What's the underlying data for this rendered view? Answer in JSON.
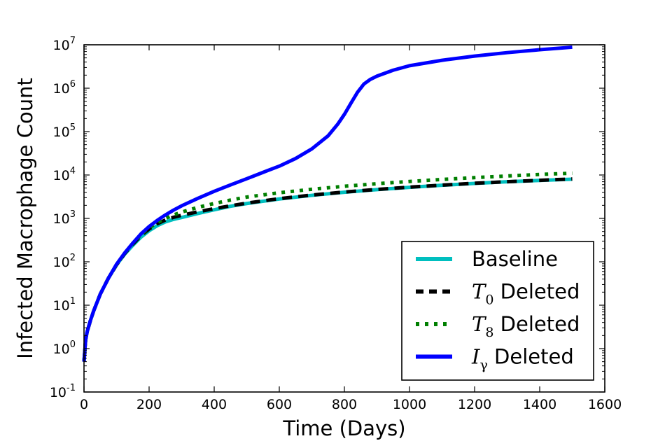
{
  "chart_data": {
    "type": "line",
    "xlabel": "Time (Days)",
    "ylabel": "Infected Macrophage Count",
    "xlim": [
      0,
      1600
    ],
    "ylim": [
      0.1,
      10000000
    ],
    "yscale": "log",
    "xticks": [
      "0",
      "200",
      "400",
      "600",
      "800",
      "1000",
      "1200",
      "1400",
      "1600"
    ],
    "yticks": [
      {
        "base": "10",
        "exp": "-1"
      },
      {
        "base": "10",
        "exp": "0"
      },
      {
        "base": "10",
        "exp": "1"
      },
      {
        "base": "10",
        "exp": "2"
      },
      {
        "base": "10",
        "exp": "3"
      },
      {
        "base": "10",
        "exp": "4"
      },
      {
        "base": "10",
        "exp": "5"
      },
      {
        "base": "10",
        "exp": "6"
      },
      {
        "base": "10",
        "exp": "7"
      }
    ],
    "grid": false,
    "legend_position": "lower-right",
    "series": [
      {
        "name": "Baseline",
        "color": "#00bfbf",
        "style": "solid",
        "x": [
          0,
          5,
          10,
          20,
          30,
          50,
          75,
          100,
          125,
          150,
          175,
          200,
          225,
          250,
          275,
          300,
          350,
          400,
          450,
          500,
          600,
          700,
          800,
          900,
          1000,
          1100,
          1200,
          1300,
          1400,
          1500
        ],
        "y": [
          0.5,
          1.6,
          2.5,
          4.5,
          7.5,
          18,
          42,
          85,
          150,
          240,
          370,
          520,
          680,
          830,
          950,
          1050,
          1300,
          1580,
          1900,
          2200,
          2800,
          3400,
          4000,
          4600,
          5200,
          5800,
          6400,
          7000,
          7500,
          8000
        ]
      },
      {
        "name": "T0 Deleted",
        "label_main": "T",
        "label_sub": "0",
        "label_rest": " Deleted",
        "color": "#000000",
        "style": "dashed",
        "x": [
          0,
          5,
          10,
          20,
          30,
          50,
          75,
          100,
          125,
          150,
          175,
          200,
          225,
          250,
          275,
          300,
          350,
          400,
          450,
          500,
          600,
          700,
          800,
          900,
          1000,
          1100,
          1200,
          1300,
          1400,
          1500
        ],
        "y": [
          0.5,
          1.6,
          2.5,
          4.5,
          7.5,
          18,
          42,
          85,
          155,
          255,
          400,
          570,
          750,
          920,
          1060,
          1180,
          1420,
          1680,
          1950,
          2250,
          2850,
          3450,
          4050,
          4650,
          5250,
          5850,
          6450,
          7000,
          7550,
          8100
        ]
      },
      {
        "name": "T8 Deleted",
        "label_main": "T",
        "label_sub": "8",
        "label_rest": " Deleted",
        "color": "#007f00",
        "style": "dotted",
        "x": [
          0,
          5,
          10,
          20,
          30,
          50,
          75,
          100,
          125,
          150,
          175,
          200,
          225,
          250,
          275,
          300,
          350,
          400,
          450,
          500,
          600,
          700,
          800,
          900,
          1000,
          1100,
          1200,
          1300,
          1400,
          1500
        ],
        "y": [
          0.5,
          1.6,
          2.5,
          4.5,
          7.5,
          18,
          42,
          85,
          158,
          265,
          420,
          600,
          800,
          1000,
          1200,
          1400,
          1800,
          2200,
          2650,
          3100,
          3900,
          4700,
          5500,
          6300,
          7100,
          7900,
          8700,
          9500,
          10300,
          11000
        ]
      },
      {
        "name": "Iγ Deleted",
        "label_main": "I",
        "label_sub": "γ",
        "label_rest": " Deleted",
        "color": "#0000ff",
        "style": "solid",
        "x": [
          0,
          5,
          10,
          20,
          30,
          50,
          75,
          100,
          125,
          150,
          175,
          200,
          225,
          250,
          275,
          300,
          350,
          400,
          450,
          500,
          550,
          600,
          650,
          700,
          750,
          780,
          800,
          820,
          840,
          860,
          880,
          900,
          950,
          1000,
          1100,
          1200,
          1300,
          1400,
          1500
        ],
        "y": [
          0.5,
          1.6,
          2.5,
          4.5,
          7.5,
          18,
          42,
          88,
          160,
          270,
          440,
          650,
          900,
          1200,
          1550,
          1950,
          2900,
          4200,
          5900,
          8200,
          11500,
          16000,
          24000,
          40000,
          80000,
          150000,
          250000,
          450000,
          800000,
          1250000,
          1600000,
          1900000,
          2600000,
          3300000,
          4400000,
          5500000,
          6600000,
          7700000,
          8800000
        ]
      }
    ]
  }
}
